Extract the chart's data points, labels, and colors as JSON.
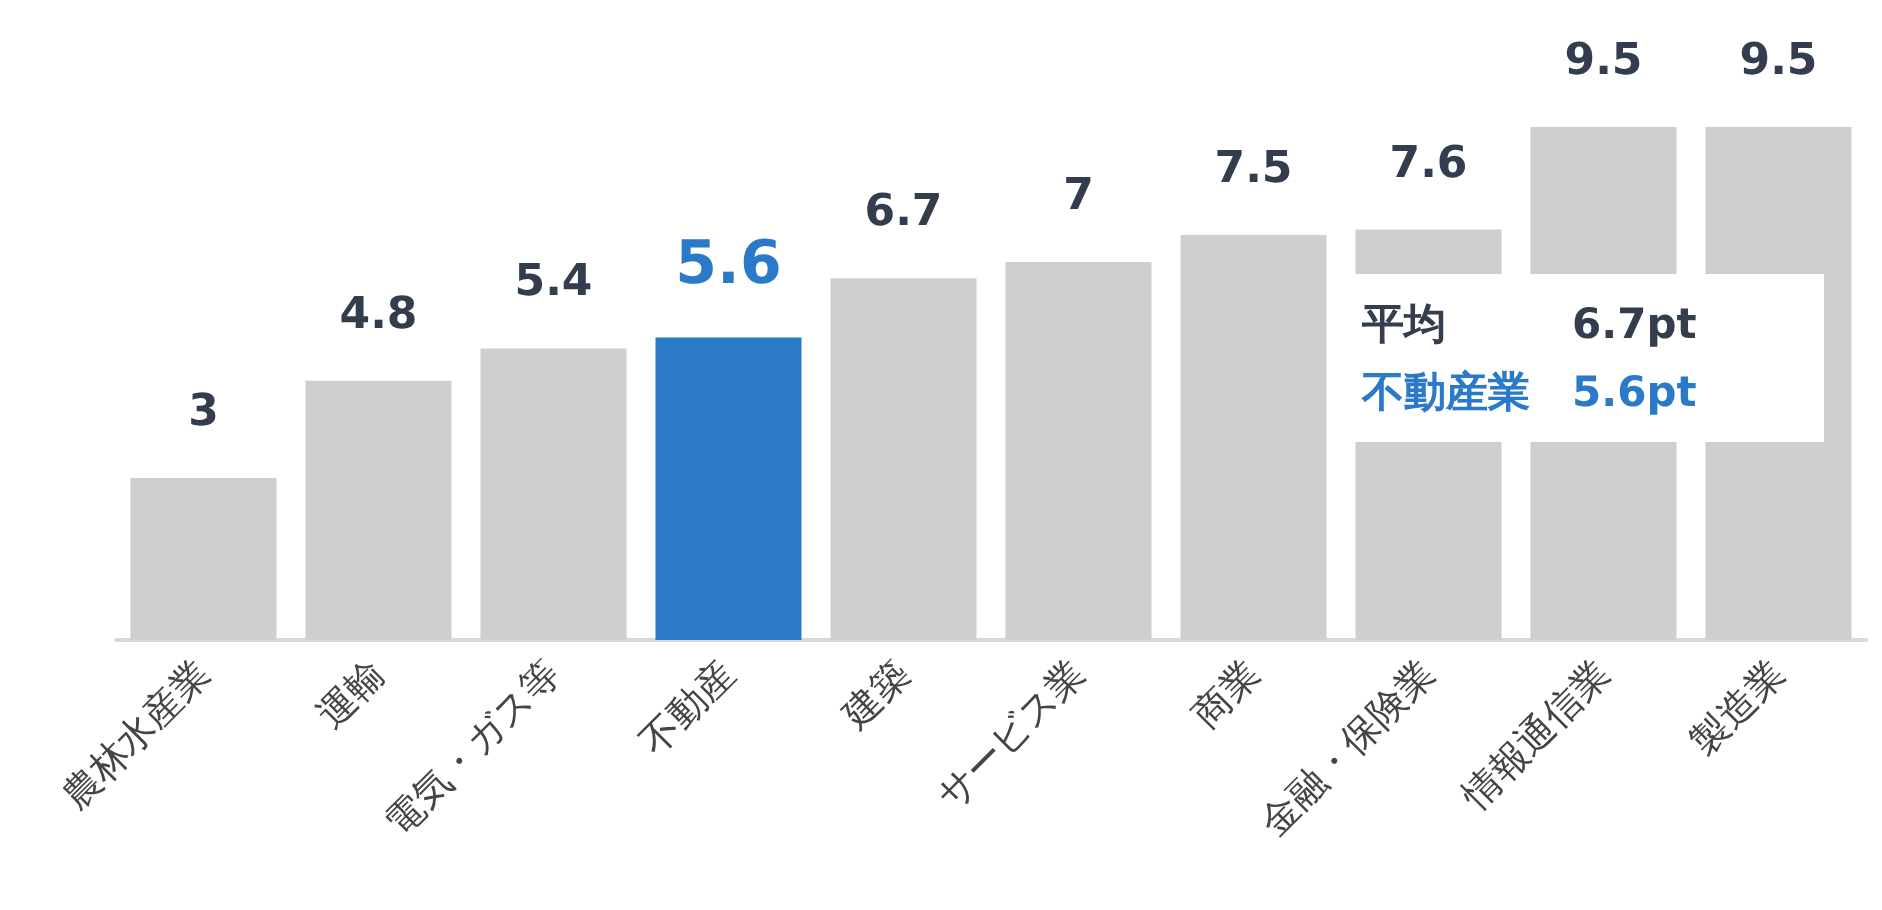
{
  "chart_data": {
    "type": "bar",
    "categories": [
      "農林水産業",
      "運輸",
      "電気・ガス等",
      "不動産",
      "建築",
      "サービス業",
      "商業",
      "金融・保険業",
      "情報通信業",
      "製造業"
    ],
    "values": [
      3,
      4.8,
      5.4,
      5.6,
      6.7,
      7,
      7.5,
      7.6,
      9.5,
      9.5
    ],
    "colors": [
      "#d0cecf",
      "#d0cecf",
      "#d0cecf",
      "#2b79c9",
      "#d0cecf",
      "#d0cecf",
      "#d0cecf",
      "#d0cecf",
      "#d0cecf",
      "#d0cecf"
    ],
    "data_labels": true,
    "grid": false,
    "annotations": [
      "平均　　　6.7pt",
      "不動産業　5.6pt"
    ]
  }
}
